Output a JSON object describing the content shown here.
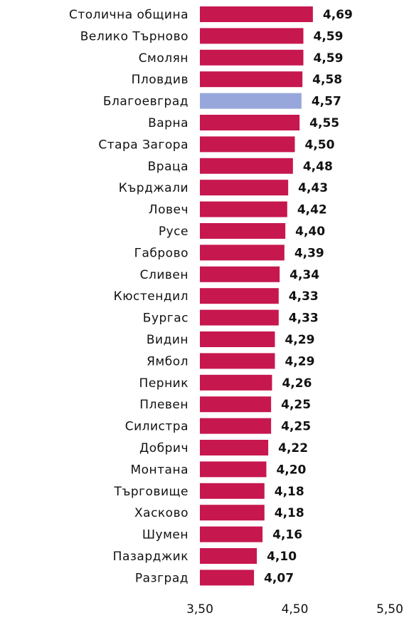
{
  "chart_data": {
    "type": "bar",
    "orientation": "horizontal",
    "categories": [
      "Столична община",
      "Велико Търново",
      "Смолян",
      "Пловдив",
      "Благоевград",
      "Варна",
      "Стара Загора",
      "Враца",
      "Кърджали",
      "Ловеч",
      "Русе",
      "Габрово",
      "Сливен",
      "Кюстендил",
      "Бургас",
      "Видин",
      "Ямбол",
      "Перник",
      "Плевен",
      "Силистра",
      "Добрич",
      "Монтана",
      "Търговище",
      "Хасково",
      "Шумен",
      "Пазарджик",
      "Разград"
    ],
    "values": [
      4.69,
      4.59,
      4.59,
      4.58,
      4.57,
      4.55,
      4.5,
      4.48,
      4.43,
      4.42,
      4.4,
      4.39,
      4.34,
      4.33,
      4.33,
      4.29,
      4.29,
      4.26,
      4.25,
      4.25,
      4.22,
      4.2,
      4.18,
      4.18,
      4.16,
      4.1,
      4.07
    ],
    "value_labels": [
      "4,69",
      "4,59",
      "4,59",
      "4,58",
      "4,57",
      "4,55",
      "4,50",
      "4,48",
      "4,43",
      "4,42",
      "4,40",
      "4,39",
      "4,34",
      "4,33",
      "4,33",
      "4,29",
      "4,29",
      "4,26",
      "4,25",
      "4,25",
      "4,22",
      "4,20",
      "4,18",
      "4,18",
      "4,16",
      "4,10",
      "4,07"
    ],
    "colors": [
      "#c7174f",
      "#c7174f",
      "#c7174f",
      "#c7174f",
      "#97a7dc",
      "#c7174f",
      "#c7174f",
      "#c7174f",
      "#c7174f",
      "#c7174f",
      "#c7174f",
      "#c7174f",
      "#c7174f",
      "#c7174f",
      "#c7174f",
      "#c7174f",
      "#c7174f",
      "#c7174f",
      "#c7174f",
      "#c7174f",
      "#c7174f",
      "#c7174f",
      "#c7174f",
      "#c7174f",
      "#c7174f",
      "#c7174f",
      "#c7174f"
    ],
    "xlim": [
      3.5,
      5.5
    ],
    "xticks": [
      {
        "value": 3.5,
        "label": "3,50"
      },
      {
        "value": 4.5,
        "label": "4,50"
      },
      {
        "value": 5.5,
        "label": "5,50"
      }
    ],
    "grid": false
  }
}
